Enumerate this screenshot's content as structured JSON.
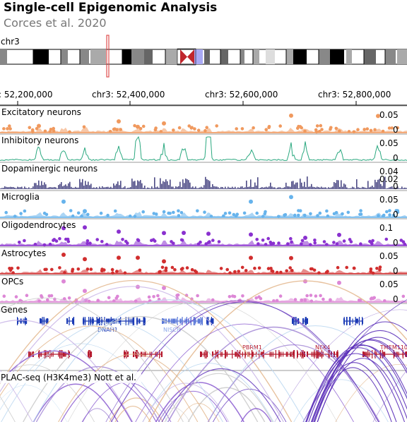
{
  "header": {
    "title": "Single-cell Epigenomic Analysis",
    "subtitle": "Corces et al. 2020"
  },
  "ideogram": {
    "chrom": "chr3"
  },
  "axis": {
    "ticks": [
      {
        "label": ": 52,200,000",
        "pos": 52200000
      },
      {
        "label": "chr3: 52,400,000",
        "pos": 52400000
      },
      {
        "label": "chr3: 52,600,000",
        "pos": 52600000
      },
      {
        "label": "chr3: 52,800,000",
        "pos": 52800000
      }
    ]
  },
  "colors": {
    "excitatory": "#f0995e",
    "inhibitory": "#2aa87f",
    "dopaminergic": "#4c4a85",
    "microglia": "#66b3ec",
    "oligodendrocytes": "#8a31cf",
    "astrocytes": "#d12e2e",
    "opcs": "#dd87d6",
    "genes_plus": "#1a3ab5",
    "genes_minus": "#b51a2e"
  },
  "tracks": [
    {
      "name": "Excitatory neurons",
      "max_label": "0.05",
      "zero_label": "0",
      "style": "points",
      "color_key": "excitatory"
    },
    {
      "name": "Inhibitory neurons",
      "max_label": "0.05",
      "zero_label": "0",
      "style": "line",
      "color_key": "inhibitory"
    },
    {
      "name": "Dopaminergic neurons",
      "max_label": "0.04",
      "mid_label": "0.02",
      "zero_label": "0",
      "style": "bar",
      "color_key": "dopaminergic"
    },
    {
      "name": "Microglia",
      "max_label": "0.05",
      "zero_label": "0",
      "style": "points",
      "color_key": "microglia"
    },
    {
      "name": "Oligodendrocytes",
      "max_label": "0.1",
      "zero_label": "0",
      "style": "points",
      "color_key": "oligodendrocytes"
    },
    {
      "name": "Astrocytes",
      "max_label": "0.05",
      "zero_label": "0",
      "style": "points",
      "color_key": "astrocytes"
    },
    {
      "name": "OPCs",
      "max_label": "0.05",
      "zero_label": "0",
      "style": "points",
      "color_key": "opcs"
    }
  ],
  "genes": {
    "title": "Genes",
    "labels": [
      {
        "name": "DNAH1",
        "strand": "+",
        "color": "#1a3ab5"
      },
      {
        "name": "NISCH",
        "strand": "+",
        "color": "#8aa6e8"
      },
      {
        "name": "PBRM1",
        "strand": "-",
        "color": "#b51a2e"
      },
      {
        "name": "NEK4",
        "strand": "-",
        "color": "#b51a2e"
      },
      {
        "name": "TMEM110",
        "strand": "-",
        "color": "#b51a2e"
      }
    ]
  },
  "plac": {
    "title": "PLAC-seq (H3K4me3) Nott et al."
  }
}
